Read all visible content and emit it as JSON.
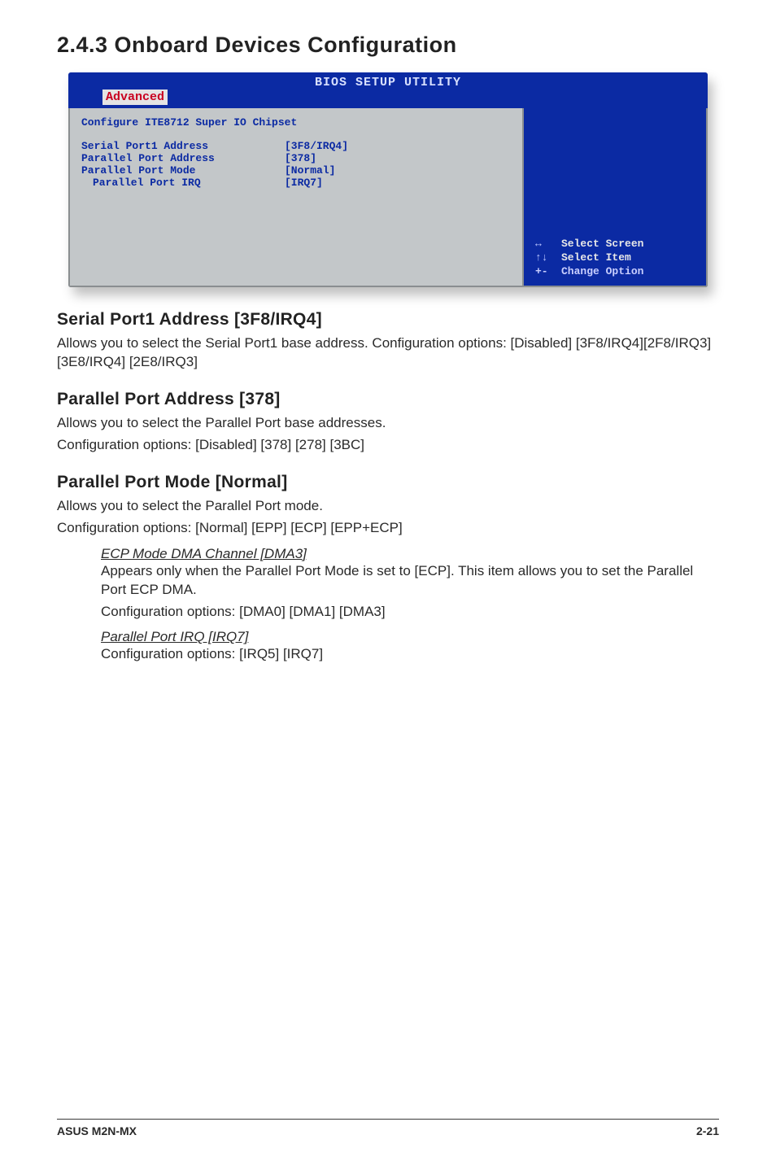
{
  "page": {
    "section_heading": "2.4.3   Onboard Devices Configuration"
  },
  "bios": {
    "header_title": "BIOS SETUP UTILITY",
    "tab_label": "Advanced",
    "config_title": "Configure ITE8712 Super IO Chipset",
    "rows": [
      {
        "label": "Serial Port1 Address",
        "value": "[3F8/IRQ4]"
      },
      {
        "label": "Parallel Port Address",
        "value": "[378]"
      },
      {
        "label": "Parallel Port Mode",
        "value": "[Normal]"
      },
      {
        "label": "Parallel Port IRQ",
        "value": "[IRQ7]",
        "indent": true
      }
    ],
    "legend": [
      {
        "sym": "↔",
        "text": "Select Screen"
      },
      {
        "sym": "↑↓",
        "text": "Select Item"
      },
      {
        "sym": "+-",
        "text": "Change Option"
      }
    ],
    "colors": {
      "header_bg": "#0b2aa3",
      "body_bg": "#c3c7c9",
      "right_bg": "#0b2aa3",
      "text_blue": "#0b2aa3",
      "tab_red": "#c90020"
    }
  },
  "sections": {
    "s1": {
      "heading": "Serial Port1 Address [3F8/IRQ4]",
      "p1": "Allows you to select the Serial Port1 base address. Configuration options: [Disabled] [3F8/IRQ4][2F8/IRQ3] [3E8/IRQ4] [2E8/IRQ3]"
    },
    "s2": {
      "heading": "Parallel Port Address [378]",
      "p1": "Allows you to select the Parallel Port base addresses.",
      "p2": "Configuration options: [Disabled] [378] [278] [3BC]"
    },
    "s3": {
      "heading": "Parallel Port Mode [Normal]",
      "p1": "Allows you to select the Parallel Port  mode.",
      "p2": "Configuration options: [Normal] [EPP] [ECP] [EPP+ECP]",
      "sub1": {
        "title": "ECP Mode DMA Channel [DMA3]",
        "l1": "Appears only when the Parallel Port Mode is set to [ECP]. This item allows you to set the Parallel Port ECP DMA.",
        "l2": "Configuration options: [DMA0] [DMA1] [DMA3]"
      },
      "sub2": {
        "title": "Parallel Port IRQ [IRQ7]",
        "l1": "Configuration options: [IRQ5] [IRQ7]"
      }
    }
  },
  "footer": {
    "left": "ASUS M2N-MX",
    "right": "2-21"
  }
}
